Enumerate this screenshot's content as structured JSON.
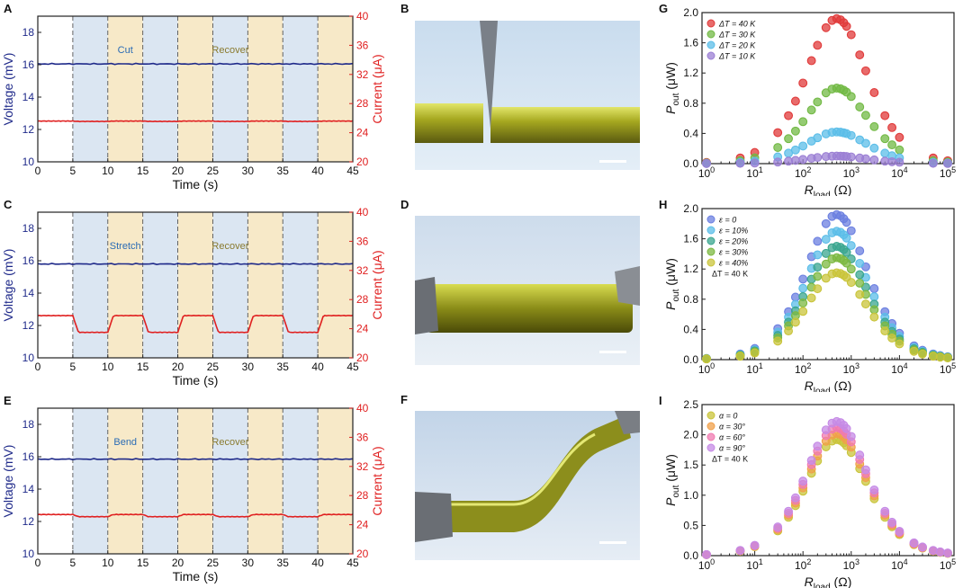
{
  "time_series_panels": [
    {
      "letter": "A",
      "label_left": "Cut",
      "label_right": "Recover",
      "xlabel": "Time (s)",
      "ylabel_left": "Voltage (mV)",
      "ylabel_right": "Current (μA)",
      "x_ticks": [
        0,
        5,
        10,
        15,
        20,
        25,
        30,
        35,
        40,
        45
      ],
      "y_left_ticks": [
        10,
        12,
        14,
        16,
        18
      ],
      "y_right_ticks": [
        20,
        24,
        28,
        32,
        36,
        40
      ],
      "voltage_level": 16.05,
      "current_base": 25.6,
      "current_drop": 0.05
    },
    {
      "letter": "C",
      "label_left": "Stretch",
      "label_right": "Recover",
      "xlabel": "Time (s)",
      "ylabel_left": "Voltage (mV)",
      "ylabel_right": "Current (μA)",
      "x_ticks": [
        0,
        5,
        10,
        15,
        20,
        25,
        30,
        35,
        40,
        45
      ],
      "y_left_ticks": [
        10,
        12,
        14,
        16,
        18
      ],
      "y_right_ticks": [
        20,
        24,
        28,
        32,
        36,
        40
      ],
      "voltage_level": 15.8,
      "current_base": 25.8,
      "current_drop": 2.3
    },
    {
      "letter": "E",
      "label_left": "Bend",
      "label_right": "Recover",
      "xlabel": "Time (s)",
      "ylabel_left": "Voltage (mV)",
      "ylabel_right": "Current (μA)",
      "x_ticks": [
        0,
        5,
        10,
        15,
        20,
        25,
        30,
        35,
        40,
        45
      ],
      "y_left_ticks": [
        10,
        12,
        14,
        16,
        18
      ],
      "y_right_ticks": [
        20,
        24,
        28,
        32,
        36,
        40
      ],
      "voltage_level": 15.85,
      "current_base": 25.4,
      "current_drop": 0.3
    }
  ],
  "photo_panels": [
    {
      "letter": "B"
    },
    {
      "letter": "D"
    },
    {
      "letter": "F"
    }
  ],
  "chart_data": [
    {
      "type": "scatter",
      "letter": "G",
      "xscale": "log",
      "x_ticks": [
        "10^0",
        "10^1",
        "10^2",
        "10^3",
        "10^4",
        "10^5"
      ],
      "ylim": [
        0,
        2.0
      ],
      "y_ticks": [
        "0.0",
        "0.4",
        "0.8",
        "1.2",
        "1.6",
        "2.0"
      ],
      "xlabel": "R_load (Ω)",
      "ylabel": "P_out (μW)",
      "legend_extra": "",
      "x": [
        1,
        5,
        10,
        30,
        50,
        70,
        100,
        150,
        200,
        300,
        400,
        500,
        600,
        700,
        800,
        1000,
        1500,
        2000,
        3000,
        5000,
        7000,
        10000,
        50000,
        100000
      ],
      "series": [
        {
          "name": "ΔT = 40 K",
          "color": "#e03a3a",
          "peak": 1.92
        },
        {
          "name": "ΔT = 30 K",
          "color": "#72b944",
          "peak": 1.0
        },
        {
          "name": "ΔT = 20 K",
          "color": "#5bbde8",
          "peak": 0.42
        },
        {
          "name": "ΔT = 10 K",
          "color": "#9b7fd4",
          "peak": 0.1
        }
      ]
    },
    {
      "type": "scatter",
      "letter": "H",
      "xscale": "log",
      "x_ticks": [
        "10^0",
        "10^1",
        "10^2",
        "10^3",
        "10^4",
        "10^5"
      ],
      "ylim": [
        0,
        2.0
      ],
      "y_ticks": [
        "0.0",
        "0.4",
        "0.8",
        "1.2",
        "1.6",
        "2.0"
      ],
      "xlabel": "R_load (Ω)",
      "ylabel": "P_out (μW)",
      "legend_extra": "ΔT = 40 K",
      "x": [
        1,
        5,
        10,
        30,
        50,
        70,
        100,
        150,
        200,
        300,
        400,
        500,
        600,
        700,
        800,
        1000,
        1500,
        2000,
        3000,
        5000,
        7000,
        10000,
        20000,
        30000,
        50000,
        70000,
        100000
      ],
      "series": [
        {
          "name": "ε = 0",
          "color": "#6b7fe0",
          "peak": 1.92
        },
        {
          "name": "ε = 10%",
          "color": "#5bbde8",
          "peak": 1.7
        },
        {
          "name": "ε = 20%",
          "color": "#3aa68f",
          "peak": 1.5
        },
        {
          "name": "ε = 30%",
          "color": "#7cb840",
          "peak": 1.35
        },
        {
          "name": "ε = 40%",
          "color": "#c9c43a",
          "peak": 1.15
        }
      ]
    },
    {
      "type": "scatter",
      "letter": "I",
      "xscale": "log",
      "x_ticks": [
        "10^0",
        "10^1",
        "10^2",
        "10^3",
        "10^4",
        "10^5"
      ],
      "ylim": [
        0,
        2.5
      ],
      "y_ticks": [
        "0.0",
        "0.5",
        "1.0",
        "1.5",
        "2.0",
        "2.5"
      ],
      "xlabel": "R_load (Ω)",
      "ylabel": "P_out (μW)",
      "legend_extra": "ΔT = 40 K",
      "x": [
        1,
        5,
        10,
        30,
        50,
        70,
        100,
        150,
        200,
        300,
        400,
        500,
        600,
        700,
        800,
        1000,
        1500,
        2000,
        3000,
        5000,
        7000,
        10000,
        20000,
        30000,
        50000,
        70000,
        100000
      ],
      "series": [
        {
          "name": "α = 0",
          "color": "#c9c43a",
          "peak": 1.92
        },
        {
          "name": "α = 30°",
          "color": "#f0a04a",
          "peak": 2.02
        },
        {
          "name": "α = 60°",
          "color": "#f07ab0",
          "peak": 2.12
        },
        {
          "name": "α = 90°",
          "color": "#c58ae6",
          "peak": 2.22
        }
      ]
    }
  ],
  "colors": {
    "voltage": "#1f2a8a",
    "current": "#e02020",
    "band_blue": "#dbe6f2",
    "band_yellow": "#f7e9c8",
    "label_left": "#2a6bb5",
    "label_right": "#8a7a2e"
  }
}
